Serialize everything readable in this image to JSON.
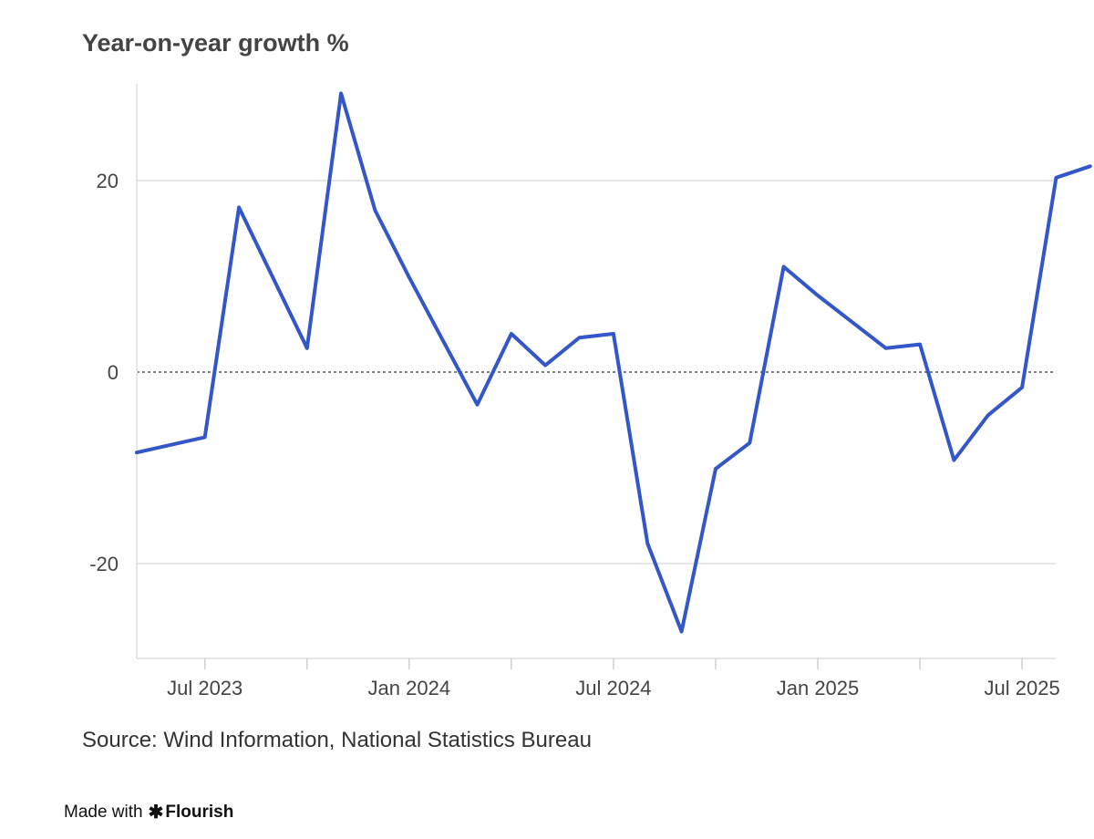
{
  "chart_data": {
    "type": "line",
    "title": "Year-on-year growth %",
    "xlabel": "",
    "ylabel": "",
    "ylim": [
      -30,
      30
    ],
    "yticks": [
      20,
      0,
      -20
    ],
    "ytick_labels": [
      "20",
      "0",
      "-20"
    ],
    "xtick_labels": [
      "Jul 2023",
      "Jan 2024",
      "Jul 2024",
      "Jan 2025",
      "Jul 2025"
    ],
    "grid": true,
    "zero_line": "dotted",
    "color": "#3356c8",
    "x": [
      "May 2023",
      "Jul 2023",
      "Aug 2023",
      "Oct 2023",
      "Nov 2023",
      "Dec 2023",
      "Jan 2024",
      "Mar 2024",
      "Apr 2024",
      "May 2024",
      "Jun 2024",
      "Jul 2024",
      "Aug 2024",
      "Sep 2024",
      "Oct 2024",
      "Nov 2024",
      "Dec 2024",
      "Jan 2025",
      "Mar 2025",
      "Apr 2025",
      "May 2025",
      "Jun 2025",
      "Jul 2025",
      "Aug 2025",
      "Sep 2025"
    ],
    "x_index": [
      0,
      2,
      3,
      5,
      6,
      7,
      8,
      10,
      11,
      12,
      13,
      14,
      15,
      16,
      17,
      18,
      19,
      20,
      22,
      23,
      24,
      25,
      26,
      27,
      28
    ],
    "series": [
      {
        "name": "Year-on-year growth %",
        "values": [
          -8.4,
          -6.8,
          17.2,
          2.5,
          29.1,
          16.9,
          9.9,
          -3.4,
          4.0,
          0.7,
          3.6,
          4.0,
          -17.9,
          -27.1,
          -10.1,
          -7.4,
          11.0,
          8.0,
          2.5,
          2.9,
          -9.2,
          -4.5,
          -1.6,
          20.3,
          21.5
        ]
      }
    ]
  },
  "source": "Source: Wind Information, National Statistics Bureau",
  "credit": {
    "prefix": "Made with",
    "brand": "Flourish"
  }
}
